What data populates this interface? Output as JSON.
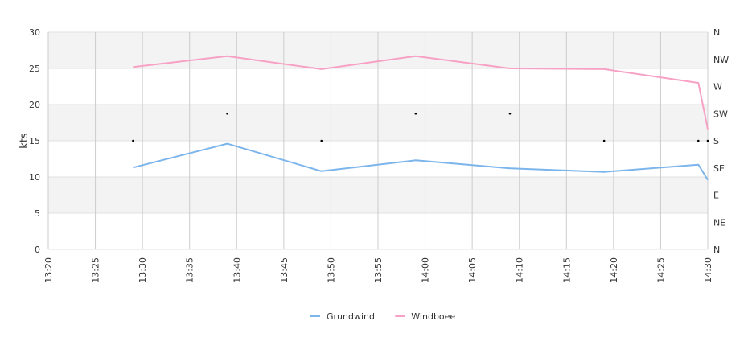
{
  "chart_data": {
    "type": "line",
    "ylabel": "kts",
    "ylim": [
      0,
      30
    ],
    "yticks": [
      0,
      5,
      10,
      15,
      20,
      25,
      30
    ],
    "x_range": [
      "13:20",
      "14:30"
    ],
    "x_ticks": [
      "13:20",
      "13:25",
      "13:30",
      "13:35",
      "13:40",
      "13:45",
      "13:50",
      "13:55",
      "14:00",
      "14:05",
      "14:10",
      "14:15",
      "14:20",
      "14:25",
      "14:30"
    ],
    "right_axis": {
      "labels": [
        "N",
        "NE",
        "E",
        "SE",
        "S",
        "SW",
        "W",
        "NW",
        "N"
      ],
      "range_degrees": [
        0,
        360
      ]
    },
    "grid": true,
    "alternate_bands": true,
    "legend_position": "bottom-center",
    "series": [
      {
        "name": "Grundwind",
        "color": "#7cb5ec",
        "points": [
          [
            "13:29",
            11.3
          ],
          [
            "13:39",
            14.6
          ],
          [
            "13:49",
            10.8
          ],
          [
            "13:59",
            12.3
          ],
          [
            "14:09",
            11.2
          ],
          [
            "14:19",
            10.7
          ],
          [
            "14:29",
            11.7
          ],
          [
            "14:30",
            9.6
          ]
        ]
      },
      {
        "name": "Windboee",
        "color": "#f7a1c4",
        "points": [
          [
            "13:29",
            25.2
          ],
          [
            "13:39",
            26.7
          ],
          [
            "13:49",
            24.9
          ],
          [
            "13:59",
            26.7
          ],
          [
            "14:09",
            25.0
          ],
          [
            "14:19",
            24.9
          ],
          [
            "14:29",
            23.0
          ],
          [
            "14:30",
            16.6
          ]
        ]
      }
    ],
    "direction_points": [
      {
        "x": "13:29",
        "value": 180
      },
      {
        "x": "13:39",
        "value": 225
      },
      {
        "x": "13:49",
        "value": 180
      },
      {
        "x": "13:59",
        "value": 225
      },
      {
        "x": "14:09",
        "value": 225
      },
      {
        "x": "14:19",
        "value": 180
      },
      {
        "x": "14:29",
        "value": 180
      },
      {
        "x": "14:30",
        "value": 180
      }
    ]
  }
}
